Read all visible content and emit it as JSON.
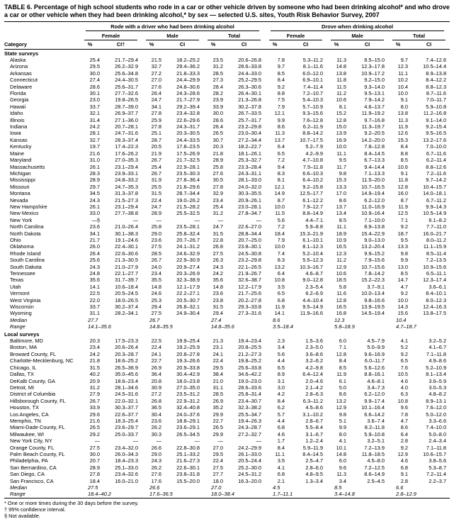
{
  "title": "TABLE 6. Percentage of high school students who rode in a car or other vehicle driven by someone who had been drinking alcohol* and who drove a car or other vehicle when they had been drinking alcohol,* by sex — selected U.S. sites, Youth Risk Behavior Survey, 2007",
  "header": {
    "category": "Category",
    "groups": [
      "Rode with a driver who had been drinking alcohol",
      "Drove when drinking alcohol"
    ],
    "subgroups": [
      "Female",
      "Male",
      "Total"
    ],
    "pct": "%",
    "ci_first": "CI†",
    "ci": "CI"
  },
  "sections": [
    {
      "label": "State surveys",
      "rows": [
        [
          "Alaska",
          "25.4",
          "21.7–29.4",
          "21.5",
          "18.2–25.2",
          "23.5",
          "20.6–26.8",
          "7.8",
          "5.3–11.2",
          "11.3",
          "8.5–15.0",
          "9.7",
          "7.4–12.6"
        ],
        [
          "Arizona",
          "29.5",
          "26.2–32.9",
          "32.7",
          "29.4–36.2",
          "31.2",
          "28.6–33.8",
          "9.7",
          "8.1–11.6",
          "14.8",
          "12.3–17.8",
          "12.3",
          "10.5–14.4"
        ],
        [
          "Arkansas",
          "30.0",
          "25.6–34.8",
          "27.2",
          "21.8–33.3",
          "28.5",
          "24.4–33.0",
          "8.5",
          "6.0–12.0",
          "13.8",
          "10.9–17.2",
          "11.1",
          "8.9–13.8"
        ],
        [
          "Connecticut",
          "27.4",
          "24.4–30.5",
          "27.0",
          "24.4–29.9",
          "27.3",
          "25.2–29.5",
          "8.4",
          "6.9–10.1",
          "11.8",
          "9.2–15.0",
          "10.2",
          "8.4–12.2"
        ],
        [
          "Delaware",
          "28.6",
          "25.6–31.7",
          "27.6",
          "24.8–30.6",
          "28.4",
          "26.3–30.6",
          "9.2",
          "7.4–11.4",
          "11.5",
          "9.3–14.0",
          "10.4",
          "8.8–12.3"
        ],
        [
          "Florida",
          "30.1",
          "27.7–32.6",
          "26.4",
          "24.3–28.6",
          "28.2",
          "26.4–30.1",
          "8.8",
          "7.2–10.7",
          "11.2",
          "9.5–13.1",
          "10.0",
          "8.7–11.6"
        ],
        [
          "Georgia",
          "23.0",
          "19.8–26.5",
          "24.7",
          "21.7–27.9",
          "23.9",
          "21.3–26.8",
          "7.5",
          "5.4–10.3",
          "10.6",
          "7.9–14.2",
          "9.1",
          "7.0–11.7"
        ],
        [
          "Hawaii",
          "33.7",
          "28.7–39.0",
          "34.1",
          "29.2–39.4",
          "33.9",
          "30.2–37.8",
          "7.9",
          "5.7–10.9",
          "8.1",
          "4.6–13.7",
          "8.0",
          "5.9–10.8"
        ],
        [
          "Idaho",
          "32.1",
          "26.9–37.7",
          "27.8",
          "23.4–32.8",
          "30.0",
          "26.7–33.5",
          "12.1",
          "9.3–15.6",
          "15.2",
          "11.9–19.2",
          "13.8",
          "11.2–16.8"
        ],
        [
          "Illinois",
          "31.4",
          "27.1–36.0",
          "25.9",
          "22.6–29.6",
          "28.6",
          "25.7–31.7",
          "9.9",
          "7.6–12.8",
          "12.8",
          "9.7–16.8",
          "11.3",
          "9.1–14.0"
        ],
        [
          "Indiana",
          "24.2",
          "20.7–28.1",
          "27.8",
          "24.3–31.7",
          "26.4",
          "23.2–29.8",
          "8.6",
          "6.2–11.9",
          "15.0",
          "11.3–19.7",
          "11.9",
          "9.2–15.4"
        ],
        [
          "Iowa",
          "28.1",
          "24.7–31.6",
          "25.1",
          "20.3–30.5",
          "26.5",
          "23.0–30.4",
          "11.3",
          "8.8–14.2",
          "13.9",
          "9.2–20.5",
          "12.6",
          "9.5–16.5"
        ],
        [
          "Kansas",
          "32.7",
          "28.3–37.4",
          "28.7",
          "24.4–33.5",
          "30.7",
          "27.2–34.4",
          "13.7",
          "10.7–17.5",
          "16.9",
          "14.2–20.0",
          "15.3",
          "13.2–17.6"
        ],
        [
          "Kentucky",
          "19.7",
          "17.4–22.3",
          "20.5",
          "17.8–23.5",
          "20.3",
          "18.2–22.7",
          "6.4",
          "5.2–7.9",
          "10.0",
          "7.8–12.8",
          "8.4",
          "7.0–10.0"
        ],
        [
          "Maine",
          "21.6",
          "17.6–26.2",
          "21.9",
          "17.5–26.9",
          "21.8",
          "18.1–26.1",
          "6.5",
          "4.2–9.9",
          "11.1",
          "8.4–14.5",
          "8.8",
          "6.7–11.6"
        ],
        [
          "Maryland",
          "31.0",
          "27.0–35.3",
          "26.7",
          "21.7–32.5",
          "28.9",
          "25.3–32.7",
          "7.2",
          "4.7–10.8",
          "9.5",
          "6.7–13.3",
          "8.5",
          "6.2–11.4"
        ],
        [
          "Massachusetts",
          "26.1",
          "23.1–29.4",
          "25.4",
          "22.9–28.1",
          "25.8",
          "23.3–28.4",
          "9.4",
          "7.5–11.8",
          "11.7",
          "9.4–14.4",
          "10.6",
          "8.8–12.6"
        ],
        [
          "Michigan",
          "28.3",
          "23.9–33.1",
          "26.7",
          "23.5–30.3",
          "27.6",
          "24.3–31.1",
          "8.3",
          "6.6–10.3",
          "9.8",
          "7.1–13.3",
          "9.1",
          "7.2–11.6"
        ],
        [
          "Mississippi",
          "28.9",
          "24.8–33.2",
          "31.9",
          "27.8–36.4",
          "30.5",
          "28.1–33.0",
          "8.1",
          "6.4–10.2",
          "15.3",
          "11.5–20.0",
          "11.8",
          "9.7–14.2"
        ],
        [
          "Missouri",
          "29.7",
          "24.7–35.3",
          "25.5",
          "21.8–29.6",
          "27.8",
          "24.0–32.0",
          "12.1",
          "9.2–15.8",
          "13.3",
          "10.7–16.5",
          "12.8",
          "10.4–15.7"
        ],
        [
          "Montana",
          "34.5",
          "31.3–37.8",
          "31.5",
          "28.7–34.4",
          "32.9",
          "30.3–35.5",
          "14.9",
          "12.5–17.7",
          "17.0",
          "14.9–19.4",
          "16.0",
          "14.0–18.1"
        ],
        [
          "Nevada",
          "24.3",
          "21.5–27.3",
          "22.4",
          "19.0–26.2",
          "23.4",
          "20.9–26.1",
          "8.7",
          "6.1–12.2",
          "8.6",
          "6.2–12.0",
          "8.7",
          "6.7–11.2"
        ],
        [
          "New Hampshire",
          "26.1",
          "23.1–29.4",
          "24.7",
          "21.5–28.2",
          "25.4",
          "23.0–28.1",
          "10.0",
          "7.9–12.7",
          "13.7",
          "11.0–16.9",
          "11.9",
          "9.9–14.3"
        ],
        [
          "New Mexico",
          "33.0",
          "27.7–38.8",
          "28.9",
          "25.5–32.5",
          "31.2",
          "27.8–34.7",
          "11.5",
          "8.8–14.9",
          "13.4",
          "10.9–16.4",
          "12.5",
          "10.5–14.9"
        ],
        [
          "New York",
          "—§",
          "—",
          "—",
          "—",
          "—",
          "—",
          "5.6",
          "4.4–7.1",
          "8.5",
          "7.1–10.0",
          "7.1",
          "6.1–8.2"
        ],
        [
          "North Carolina",
          "23.6",
          "21.0–26.4",
          "25.8",
          "23.5–28.1",
          "24.7",
          "22.6–27.0",
          "7.2",
          "5.9–8.8",
          "11.1",
          "8.9–13.8",
          "9.2",
          "7.7–11.0"
        ],
        [
          "North Dakota",
          "34.1",
          "30.1–38.3",
          "29.0",
          "25.8–32.4",
          "31.5",
          "28.8–34.4",
          "18.4",
          "15.3–21.9",
          "18.9",
          "15.4–22.9",
          "18.7",
          "16.0–21.7"
        ],
        [
          "Ohio",
          "21.7",
          "19.1–24.6",
          "23.6",
          "20.7–26.7",
          "22.8",
          "20.7–25.0",
          "7.9",
          "6.1–10.1",
          "10.9",
          "9.0–13.0",
          "9.5",
          "8.0–11.2"
        ],
        [
          "Oklahoma",
          "26.0",
          "22.4–30.1",
          "27.5",
          "24.1–31.2",
          "26.8",
          "23.8–30.1",
          "10.0",
          "8.1–12.3",
          "16.5",
          "13.2–20.4",
          "13.3",
          "11.1–15.9"
        ],
        [
          "Rhode Island",
          "26.4",
          "22.6–30.6",
          "28.5",
          "24.6–32.9",
          "27.5",
          "24.5–30.8",
          "7.4",
          "5.2–10.4",
          "12.3",
          "9.9–15.2",
          "9.8",
          "8.5–11.4"
        ],
        [
          "South Carolina",
          "25.6",
          "21.3–30.5",
          "26.7",
          "22.9–30.9",
          "26.3",
          "23.2–29.8",
          "8.3",
          "5.5–12.3",
          "11.2",
          "7.9–15.6",
          "9.9",
          "7.2–13.5"
        ],
        [
          "South Dakota",
          "24.3",
          "21.0–27.9",
          "24.0",
          "20.9–27.4",
          "24.3",
          "22.1–26.5",
          "13.2",
          "10.3–16.7",
          "12.9",
          "10.7–15.6",
          "13.0",
          "10.9–15.6"
        ],
        [
          "Tennessee",
          "24.8",
          "22.1–27.7",
          "23.4",
          "20.3–26.9",
          "24.2",
          "21.9–26.7",
          "6.4",
          "4.6–8.7",
          "10.6",
          "7.8–14.2",
          "8.5",
          "6.5–11.1"
        ],
        [
          "Texas",
          "35.6",
          "31.7–39.7",
          "35.5",
          "32.3–38.9",
          "35.6",
          "32.6–38.7",
          "10.8",
          "9.0–12.8",
          "18.5",
          "15.2–22.3",
          "14.7",
          "12.3–17.4"
        ],
        [
          "Utah",
          "14.1",
          "10.6–18.4",
          "14.8",
          "12.1–17.9",
          "14.8",
          "12.2–17.9",
          "3.5",
          "2.3–5.4",
          "5.8",
          "3.7–9.1",
          "4.7",
          "3.6–6.1"
        ],
        [
          "Vermont",
          "22.5",
          "20.5–24.5",
          "24.6",
          "22.2–27.1",
          "23.6",
          "21.7–25.6",
          "6.5",
          "6.2–6.9",
          "11.6",
          "10.0–13.4",
          "9.2",
          "8.4–10.1"
        ],
        [
          "West Virginia",
          "22.0",
          "18.0–26.5",
          "25.3",
          "20.5–30.7",
          "23.8",
          "20.2–27.8",
          "6.8",
          "4.4–10.4",
          "12.8",
          "9.8–16.6",
          "10.0",
          "8.0–12.3"
        ],
        [
          "Wisconsin",
          "33.7",
          "30.2–37.4",
          "29.4",
          "26.8–32.1",
          "31.5",
          "29.3–33.8",
          "11.9",
          "9.5–14.9",
          "16.5",
          "13.9–19.5",
          "14.3",
          "12.4–16.3"
        ],
        [
          "Wyoming",
          "31.1",
          "28.2–34.1",
          "27.5",
          "24.9–30.4",
          "29.4",
          "27.3–31.6",
          "14.1",
          "11.9–16.6",
          "16.8",
          "14.5–19.4",
          "15.6",
          "13.8–17.5"
        ],
        [
          "Median",
          "27.7",
          "26.7",
          "27.4",
          "8.6",
          "12.3",
          "10.4"
        ],
        [
          "Range",
          "14.1–35.6",
          "14.8–35.5",
          "14.8–35.6",
          "3.5–18.4",
          "5.8–18.9",
          "4.7–18.7"
        ]
      ]
    },
    {
      "label": "Local surveys",
      "rows": [
        [
          "Baltimore, MD",
          "20.3",
          "17.5–23.3",
          "22.5",
          "19.9–25.4",
          "21.3",
          "19.4–23.4",
          "2.3",
          "1.5–3.6",
          "6.0",
          "4.5–7.9",
          "4.1",
          "3.2–5.2"
        ],
        [
          "Boston, MA",
          "23.4",
          "20.6–26.4",
          "22.4",
          "19.2–25.9",
          "23.1",
          "20.8–25.5",
          "3.4",
          "2.3–5.0",
          "7.1",
          "5.0–9.9",
          "5.2",
          "4.1–6.7"
        ],
        [
          "Broward County, FL",
          "24.2",
          "20.3–28.7",
          "24.1",
          "20.8–27.8",
          "24.1",
          "21.2–27.3",
          "5.6",
          "3.6–8.6",
          "12.8",
          "9.6–16.9",
          "9.2",
          "7.1–11.8"
        ],
        [
          "Charlotte-Mecklenburg, NC",
          "21.8",
          "18.6–25.2",
          "22.7",
          "19.3–26.6",
          "22.4",
          "19.8–25.2",
          "4.4",
          "3.2–6.2",
          "8.4",
          "6.0–11.7",
          "6.5",
          "4.9–8.6"
        ],
        [
          "Chicago, IL",
          "31.5",
          "26.5–36.9",
          "26.9",
          "20.9–33.8",
          "29.5",
          "25.6–33.8",
          "6.5",
          "4.2–9.8",
          "8.5",
          "5.6–12.6",
          "7.6",
          "5.2–10.9"
        ],
        [
          "Dallas, TX",
          "40.2",
          "35.0–45.6",
          "36.4",
          "30.4–42.9",
          "38.4",
          "34.6–42.2",
          "8.9",
          "6.4–12.4",
          "11.9",
          "8.8–16.1",
          "10.5",
          "8.1–13.4"
        ],
        [
          "DeKalb County, GA",
          "20.9",
          "18.6–23.4",
          "20.8",
          "18.0–23.8",
          "21.0",
          "19.0–23.0",
          "3.1",
          "2.0–4.6",
          "6.1",
          "4.6–8.1",
          "4.6",
          "3.6–5.9"
        ],
        [
          "Detroit, MI",
          "31.2",
          "28.1–34.6",
          "30.9",
          "27.0–35.0",
          "31.1",
          "28.6–33.6",
          "3.0",
          "2.1–4.2",
          "5.0",
          "3.4–7.3",
          "4.0",
          "3.0–5.3"
        ],
        [
          "District of Columbia",
          "27.9",
          "24.5–31.6",
          "27.2",
          "23.5–31.2",
          "28.5",
          "25.8–31.4",
          "4.2",
          "2.8–6.3",
          "8.6",
          "6.2–12.0",
          "6.3",
          "4.8–8.2"
        ],
        [
          "Hillsborough County, FL",
          "26.7",
          "22.0–32.1",
          "26.8",
          "22.9–31.2",
          "26.9",
          "23.4–30.7",
          "8.4",
          "6.3–11.2",
          "13.2",
          "9.9–17.4",
          "10.8",
          "8.9–13.1"
        ],
        [
          "Houston, TX",
          "33.9",
          "30.3–37.7",
          "36.5",
          "32.4–40.8",
          "35.2",
          "32.3–38.2",
          "6.2",
          "4.5–8.6",
          "12.9",
          "10.1–16.4",
          "9.6",
          "7.6–12.0"
        ],
        [
          "Los Angeles, CA",
          "29.6",
          "22.6–37.7",
          "30.4",
          "24.0–37.6",
          "29.9",
          "25.5–34.7",
          "5.7",
          "3.1–10.2",
          "9.8",
          "6.6–14.2",
          "7.8",
          "5.0–12.0"
        ],
        [
          "Memphis, TN",
          "21.6",
          "18.3–25.4",
          "23.6",
          "18.8–29.1",
          "22.7",
          "19.4–26.3",
          "4.4",
          "2.8–6.7",
          "5.1",
          "3.6–7.4",
          "4.7",
          "3.3–6.6"
        ],
        [
          "Miami-Dade County, FL",
          "26.5",
          "23.6–29.7",
          "26.2",
          "23.6–29.1",
          "26.5",
          "24.3–28.7",
          "6.8",
          "5.5–8.4",
          "9.9",
          "8.2–11.8",
          "8.6",
          "7.4–10.0"
        ],
        [
          "Milwaukee, WI",
          "29.2",
          "25.0–33.7",
          "30.3",
          "26.5–34.5",
          "29.9",
          "27.2–32.7",
          "4.6",
          "3.1–6.7",
          "8.0",
          "5.9–10.8",
          "6.4",
          "5.0–8.0"
        ],
        [
          "New York City, NY",
          "—",
          "—",
          "—",
          "—",
          "—",
          "—",
          "1.7",
          "1.2–2.4",
          "4.1",
          "3.2–5.1",
          "2.8",
          "2.4–3.4"
        ],
        [
          "Orange County, FL",
          "27.5",
          "23.4–32.0",
          "26.6",
          "22.8–30.8",
          "27.0",
          "24.2–29.9",
          "8.4",
          "5.9–11.9",
          "10.1",
          "7.2–13.9",
          "9.2",
          "7.1–11.8"
        ],
        [
          "Palm Beach County, FL",
          "30.0",
          "26.0–34.3",
          "29.0",
          "25.1–33.2",
          "29.5",
          "26.1–33.0",
          "11.1",
          "8.4–14.5",
          "14.8",
          "11.8–18.5",
          "12.9",
          "10.6–15.7"
        ],
        [
          "Philadelphia, PA",
          "20.7",
          "18.4–23.3",
          "24.3",
          "21.6–27.3",
          "22.4",
          "20.5–24.4",
          "3.5",
          "2.5–4.7",
          "6.0",
          "4.5–8.0",
          "4.6",
          "3.8–5.6"
        ],
        [
          "San Bernardino, CA",
          "28.9",
          "25.1–33.0",
          "26.2",
          "22.6–30.1",
          "27.5",
          "25.2–30.0",
          "4.1",
          "2.8–6.0",
          "9.6",
          "7.2–12.5",
          "6.8",
          "5.3–8.7"
        ],
        [
          "San Diego, CA",
          "27.8",
          "23.4–32.6",
          "27.6",
          "23.8–31.8",
          "27.7",
          "24.5–31.2",
          "6.8",
          "4.8–9.5",
          "11.3",
          "8.6–14.9",
          "9.1",
          "7.2–11.4"
        ],
        [
          "San Francisco, CA",
          "18.4",
          "16.0–21.0",
          "17.6",
          "15.5–20.0",
          "18.0",
          "16.3–20.0",
          "2.1",
          "1.3–3.4",
          "3.4",
          "2.5–4.5",
          "2.8",
          "2.2–3.7"
        ],
        [
          "Median",
          "27.5",
          "26.6",
          "27.0",
          "4.5",
          "8.5",
          "6.6"
        ],
        [
          "Range",
          "18.4–40.2",
          "17.6–36.5",
          "18.0–38.4",
          "1.7–11.1",
          "3.4–14.8",
          "2.8–12.9"
        ]
      ]
    }
  ],
  "footnotes": [
    "* One or more times during the 30 days before the survey.",
    "† 95% confidence interval.",
    "§ Not available."
  ]
}
